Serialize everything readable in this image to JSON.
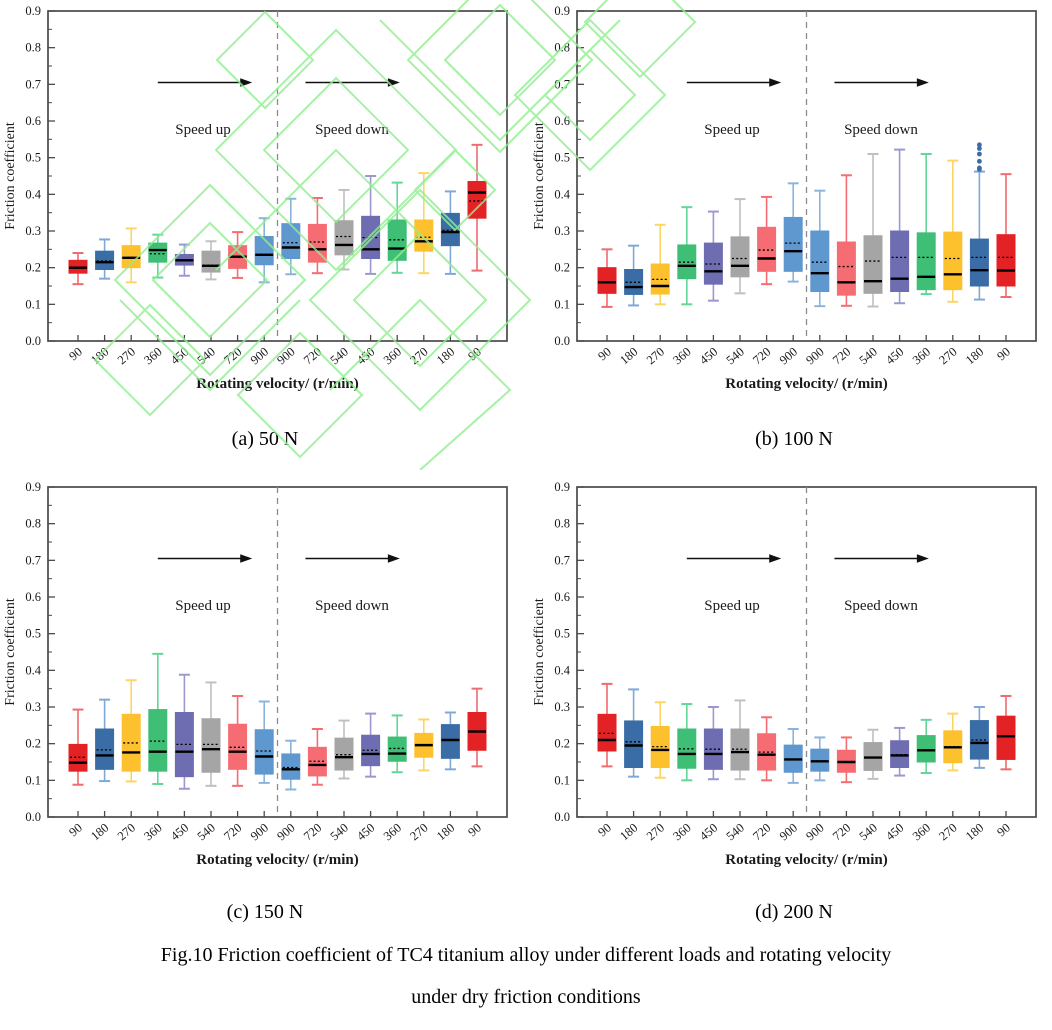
{
  "figure": {
    "caption_line1": "Fig.10 Friction coefficient of TC4 titanium alloy under different loads and rotating velocity",
    "caption_line2": "under dry friction conditions"
  },
  "palette": {
    "red": {
      "fill": "#e32226",
      "line": "#ee6b6e"
    },
    "blue": {
      "fill": "#3a6ca5",
      "line": "#7fa8d9"
    },
    "gold": {
      "fill": "#fcc12c",
      "line": "#fdd565"
    },
    "green": {
      "fill": "#3fbe75",
      "line": "#63d698"
    },
    "purple": {
      "fill": "#6f6db2",
      "line": "#9a98cf"
    },
    "gray": {
      "fill": "#a5a5a6",
      "line": "#c0c0c1"
    },
    "salmon": {
      "fill": "#f56d72",
      "line": "#f56d72"
    },
    "lightblue": {
      "fill": "#5f97cf",
      "line": "#8ab4de"
    }
  },
  "style_colors": {
    "frame": "#4a4a4a",
    "text": "#1a1a1a",
    "divider": "#8a8a8a",
    "watermark": "#90ee90"
  },
  "chart_data": [
    {
      "type": "box",
      "subcaption": "(a) 50 N",
      "load": "50 N",
      "ylabel": "Friction coefficient",
      "xlabel": "Rotating velocity/ (r/min)",
      "ylim": [
        0.0,
        0.9
      ],
      "yticks": [
        "0.0",
        "0.1",
        "0.2",
        "0.3",
        "0.4",
        "0.5",
        "0.6",
        "0.7",
        "0.8",
        "0.9"
      ],
      "categories": [
        "90",
        "180",
        "270",
        "360",
        "450",
        "540",
        "720",
        "900",
        "900",
        "720",
        "540",
        "450",
        "360",
        "270",
        "180",
        "90"
      ],
      "annotations": [
        "Speed up",
        "Speed down"
      ],
      "divider_after_index": 8,
      "boxes": [
        {
          "c": "red",
          "lo": 0.155,
          "q1": 0.185,
          "med": 0.2,
          "mean": 0.198,
          "q3": 0.22,
          "hi": 0.24
        },
        {
          "c": "blue",
          "lo": 0.17,
          "q1": 0.195,
          "med": 0.215,
          "mean": 0.218,
          "q3": 0.245,
          "hi": 0.277
        },
        {
          "c": "gold",
          "lo": 0.16,
          "q1": 0.2,
          "med": 0.227,
          "mean": 0.228,
          "q3": 0.26,
          "hi": 0.307
        },
        {
          "c": "green",
          "lo": 0.173,
          "q1": 0.215,
          "med": 0.248,
          "mean": 0.238,
          "q3": 0.267,
          "hi": 0.29
        },
        {
          "c": "purple",
          "lo": 0.178,
          "q1": 0.207,
          "med": 0.22,
          "mean": 0.221,
          "q3": 0.236,
          "hi": 0.263
        },
        {
          "c": "gray",
          "lo": 0.168,
          "q1": 0.188,
          "med": 0.205,
          "mean": 0.207,
          "q3": 0.245,
          "hi": 0.272
        },
        {
          "c": "salmon",
          "lo": 0.172,
          "q1": 0.198,
          "med": 0.23,
          "mean": 0.228,
          "q3": 0.26,
          "hi": 0.297
        },
        {
          "c": "lightblue",
          "lo": 0.16,
          "q1": 0.208,
          "med": 0.235,
          "mean": 0.237,
          "q3": 0.285,
          "hi": 0.335
        },
        {
          "c": "lightblue",
          "lo": 0.182,
          "q1": 0.225,
          "med": 0.255,
          "mean": 0.268,
          "q3": 0.32,
          "hi": 0.388
        },
        {
          "c": "salmon",
          "lo": 0.185,
          "q1": 0.215,
          "med": 0.25,
          "mean": 0.27,
          "q3": 0.318,
          "hi": 0.39
        },
        {
          "c": "gray",
          "lo": 0.195,
          "q1": 0.235,
          "med": 0.262,
          "mean": 0.285,
          "q3": 0.328,
          "hi": 0.412
        },
        {
          "c": "purple",
          "lo": 0.183,
          "q1": 0.225,
          "med": 0.25,
          "mean": 0.282,
          "q3": 0.34,
          "hi": 0.45
        },
        {
          "c": "green",
          "lo": 0.186,
          "q1": 0.22,
          "med": 0.252,
          "mean": 0.276,
          "q3": 0.33,
          "hi": 0.432
        },
        {
          "c": "gold",
          "lo": 0.185,
          "q1": 0.245,
          "med": 0.272,
          "mean": 0.283,
          "q3": 0.33,
          "hi": 0.458
        },
        {
          "c": "blue",
          "lo": 0.183,
          "q1": 0.26,
          "med": 0.297,
          "mean": 0.302,
          "q3": 0.348,
          "hi": 0.408
        },
        {
          "c": "red",
          "lo": 0.192,
          "q1": 0.335,
          "med": 0.405,
          "mean": 0.382,
          "q3": 0.435,
          "hi": 0.535
        }
      ],
      "outliers": []
    },
    {
      "type": "box",
      "subcaption": "(b) 100 N",
      "load": "100 N",
      "ylabel": "Friction coefficient",
      "xlabel": "Rotating velocity/ (r/min)",
      "ylim": [
        0.0,
        0.9
      ],
      "yticks": [
        "0.0",
        "0.1",
        "0.2",
        "0.3",
        "0.4",
        "0.5",
        "0.6",
        "0.7",
        "0.8",
        "0.9"
      ],
      "categories": [
        "90",
        "180",
        "270",
        "360",
        "450",
        "540",
        "720",
        "900",
        "900",
        "720",
        "540",
        "450",
        "360",
        "270",
        "180",
        "90"
      ],
      "annotations": [
        "Speed up",
        "Speed down"
      ],
      "divider_after_index": 8,
      "boxes": [
        {
          "c": "red",
          "lo": 0.093,
          "q1": 0.13,
          "med": 0.16,
          "mean": 0.162,
          "q3": 0.2,
          "hi": 0.25
        },
        {
          "c": "blue",
          "lo": 0.097,
          "q1": 0.127,
          "med": 0.147,
          "mean": 0.16,
          "q3": 0.195,
          "hi": 0.26
        },
        {
          "c": "gold",
          "lo": 0.1,
          "q1": 0.128,
          "med": 0.15,
          "mean": 0.168,
          "q3": 0.21,
          "hi": 0.317
        },
        {
          "c": "green",
          "lo": 0.1,
          "q1": 0.17,
          "med": 0.205,
          "mean": 0.215,
          "q3": 0.262,
          "hi": 0.365
        },
        {
          "c": "purple",
          "lo": 0.11,
          "q1": 0.155,
          "med": 0.19,
          "mean": 0.21,
          "q3": 0.267,
          "hi": 0.353
        },
        {
          "c": "gray",
          "lo": 0.13,
          "q1": 0.175,
          "med": 0.205,
          "mean": 0.225,
          "q3": 0.284,
          "hi": 0.387
        },
        {
          "c": "salmon",
          "lo": 0.155,
          "q1": 0.19,
          "med": 0.225,
          "mean": 0.248,
          "q3": 0.31,
          "hi": 0.393
        },
        {
          "c": "lightblue",
          "lo": 0.162,
          "q1": 0.19,
          "med": 0.245,
          "mean": 0.267,
          "q3": 0.337,
          "hi": 0.43
        },
        {
          "c": "lightblue",
          "lo": 0.095,
          "q1": 0.135,
          "med": 0.185,
          "mean": 0.215,
          "q3": 0.3,
          "hi": 0.41
        },
        {
          "c": "salmon",
          "lo": 0.096,
          "q1": 0.125,
          "med": 0.16,
          "mean": 0.203,
          "q3": 0.27,
          "hi": 0.452
        },
        {
          "c": "gray",
          "lo": 0.094,
          "q1": 0.13,
          "med": 0.163,
          "mean": 0.218,
          "q3": 0.287,
          "hi": 0.51
        },
        {
          "c": "purple",
          "lo": 0.103,
          "q1": 0.135,
          "med": 0.17,
          "mean": 0.228,
          "q3": 0.3,
          "hi": 0.522
        },
        {
          "c": "green",
          "lo": 0.128,
          "q1": 0.14,
          "med": 0.175,
          "mean": 0.228,
          "q3": 0.295,
          "hi": 0.51
        },
        {
          "c": "gold",
          "lo": 0.107,
          "q1": 0.14,
          "med": 0.182,
          "mean": 0.225,
          "q3": 0.297,
          "hi": 0.492
        },
        {
          "c": "blue",
          "lo": 0.113,
          "q1": 0.15,
          "med": 0.193,
          "mean": 0.228,
          "q3": 0.278,
          "hi": 0.462
        },
        {
          "c": "red",
          "lo": 0.12,
          "q1": 0.15,
          "med": 0.192,
          "mean": 0.228,
          "q3": 0.29,
          "hi": 0.455
        }
      ],
      "outliers": [
        {
          "box": 14,
          "values": [
            0.468,
            0.472,
            0.49,
            0.51,
            0.525,
            0.535
          ]
        }
      ]
    },
    {
      "type": "box",
      "subcaption": "(c) 150 N",
      "load": "150 N",
      "ylabel": "Friction coefficient",
      "xlabel": "Rotating velocity/ (r/min)",
      "ylim": [
        0.0,
        0.9
      ],
      "yticks": [
        "0.0",
        "0.1",
        "0.2",
        "0.3",
        "0.4",
        "0.5",
        "0.6",
        "0.7",
        "0.8",
        "0.9"
      ],
      "categories": [
        "90",
        "180",
        "270",
        "360",
        "450",
        "540",
        "720",
        "900",
        "900",
        "720",
        "540",
        "450",
        "360",
        "270",
        "180",
        "90"
      ],
      "annotations": [
        "Speed up",
        "Speed down"
      ],
      "divider_after_index": 8,
      "boxes": [
        {
          "c": "red",
          "lo": 0.088,
          "q1": 0.125,
          "med": 0.148,
          "mean": 0.163,
          "q3": 0.198,
          "hi": 0.293
        },
        {
          "c": "blue",
          "lo": 0.098,
          "q1": 0.13,
          "med": 0.168,
          "mean": 0.183,
          "q3": 0.24,
          "hi": 0.32
        },
        {
          "c": "gold",
          "lo": 0.097,
          "q1": 0.125,
          "med": 0.176,
          "mean": 0.202,
          "q3": 0.28,
          "hi": 0.373
        },
        {
          "c": "green",
          "lo": 0.09,
          "q1": 0.125,
          "med": 0.178,
          "mean": 0.207,
          "q3": 0.293,
          "hi": 0.445
        },
        {
          "c": "purple",
          "lo": 0.077,
          "q1": 0.11,
          "med": 0.178,
          "mean": 0.198,
          "q3": 0.285,
          "hi": 0.388
        },
        {
          "c": "gray",
          "lo": 0.085,
          "q1": 0.122,
          "med": 0.185,
          "mean": 0.198,
          "q3": 0.268,
          "hi": 0.367
        },
        {
          "c": "salmon",
          "lo": 0.085,
          "q1": 0.13,
          "med": 0.178,
          "mean": 0.19,
          "q3": 0.253,
          "hi": 0.33
        },
        {
          "c": "lightblue",
          "lo": 0.093,
          "q1": 0.117,
          "med": 0.165,
          "mean": 0.18,
          "q3": 0.238,
          "hi": 0.315
        },
        {
          "c": "lightblue",
          "lo": 0.075,
          "q1": 0.103,
          "med": 0.13,
          "mean": 0.135,
          "q3": 0.172,
          "hi": 0.208
        },
        {
          "c": "salmon",
          "lo": 0.088,
          "q1": 0.112,
          "med": 0.142,
          "mean": 0.152,
          "q3": 0.19,
          "hi": 0.24
        },
        {
          "c": "gray",
          "lo": 0.105,
          "q1": 0.128,
          "med": 0.163,
          "mean": 0.17,
          "q3": 0.215,
          "hi": 0.263
        },
        {
          "c": "purple",
          "lo": 0.11,
          "q1": 0.14,
          "med": 0.172,
          "mean": 0.182,
          "q3": 0.223,
          "hi": 0.282
        },
        {
          "c": "green",
          "lo": 0.122,
          "q1": 0.152,
          "med": 0.173,
          "mean": 0.187,
          "q3": 0.218,
          "hi": 0.277
        },
        {
          "c": "gold",
          "lo": 0.127,
          "q1": 0.163,
          "med": 0.196,
          "mean": 0.197,
          "q3": 0.228,
          "hi": 0.266
        },
        {
          "c": "blue",
          "lo": 0.13,
          "q1": 0.16,
          "med": 0.21,
          "mean": 0.21,
          "q3": 0.252,
          "hi": 0.285
        },
        {
          "c": "red",
          "lo": 0.138,
          "q1": 0.182,
          "med": 0.233,
          "mean": 0.233,
          "q3": 0.285,
          "hi": 0.35
        }
      ],
      "outliers": []
    },
    {
      "type": "box",
      "subcaption": "(d) 200 N",
      "load": "200 N",
      "ylabel": "Friction coefficient",
      "xlabel": "Rotating velocity/ (r/min)",
      "ylim": [
        0.0,
        0.9
      ],
      "yticks": [
        "0.0",
        "0.1",
        "0.2",
        "0.3",
        "0.4",
        "0.5",
        "0.6",
        "0.7",
        "0.8",
        "0.9"
      ],
      "categories": [
        "90",
        "180",
        "270",
        "360",
        "450",
        "540",
        "720",
        "900",
        "900",
        "720",
        "540",
        "450",
        "360",
        "270",
        "180",
        "90"
      ],
      "annotations": [
        "Speed up",
        "Speed down"
      ],
      "divider_after_index": 8,
      "boxes": [
        {
          "c": "red",
          "lo": 0.138,
          "q1": 0.18,
          "med": 0.21,
          "mean": 0.228,
          "q3": 0.28,
          "hi": 0.363
        },
        {
          "c": "blue",
          "lo": 0.11,
          "q1": 0.135,
          "med": 0.195,
          "mean": 0.205,
          "q3": 0.262,
          "hi": 0.348
        },
        {
          "c": "gold",
          "lo": 0.107,
          "q1": 0.135,
          "med": 0.183,
          "mean": 0.192,
          "q3": 0.247,
          "hi": 0.313
        },
        {
          "c": "green",
          "lo": 0.1,
          "q1": 0.133,
          "med": 0.172,
          "mean": 0.186,
          "q3": 0.24,
          "hi": 0.308
        },
        {
          "c": "purple",
          "lo": 0.103,
          "q1": 0.13,
          "med": 0.172,
          "mean": 0.185,
          "q3": 0.24,
          "hi": 0.3
        },
        {
          "c": "gray",
          "lo": 0.103,
          "q1": 0.128,
          "med": 0.177,
          "mean": 0.185,
          "q3": 0.24,
          "hi": 0.318
        },
        {
          "c": "salmon",
          "lo": 0.1,
          "q1": 0.128,
          "med": 0.17,
          "mean": 0.177,
          "q3": 0.227,
          "hi": 0.272
        },
        {
          "c": "lightblue",
          "lo": 0.093,
          "q1": 0.122,
          "med": 0.157,
          "mean": 0.157,
          "q3": 0.196,
          "hi": 0.24
        },
        {
          "c": "lightblue",
          "lo": 0.1,
          "q1": 0.125,
          "med": 0.152,
          "mean": 0.153,
          "q3": 0.185,
          "hi": 0.217
        },
        {
          "c": "salmon",
          "lo": 0.095,
          "q1": 0.122,
          "med": 0.15,
          "mean": 0.15,
          "q3": 0.182,
          "hi": 0.217
        },
        {
          "c": "gray",
          "lo": 0.104,
          "q1": 0.127,
          "med": 0.162,
          "mean": 0.163,
          "q3": 0.203,
          "hi": 0.238
        },
        {
          "c": "purple",
          "lo": 0.113,
          "q1": 0.135,
          "med": 0.168,
          "mean": 0.17,
          "q3": 0.208,
          "hi": 0.243
        },
        {
          "c": "green",
          "lo": 0.12,
          "q1": 0.15,
          "med": 0.182,
          "mean": 0.183,
          "q3": 0.222,
          "hi": 0.265
        },
        {
          "c": "gold",
          "lo": 0.127,
          "q1": 0.148,
          "med": 0.19,
          "mean": 0.192,
          "q3": 0.235,
          "hi": 0.282
        },
        {
          "c": "blue",
          "lo": 0.134,
          "q1": 0.158,
          "med": 0.202,
          "mean": 0.21,
          "q3": 0.263,
          "hi": 0.3
        },
        {
          "c": "red",
          "lo": 0.13,
          "q1": 0.157,
          "med": 0.22,
          "mean": 0.22,
          "q3": 0.275,
          "hi": 0.33
        }
      ],
      "outliers": []
    }
  ]
}
